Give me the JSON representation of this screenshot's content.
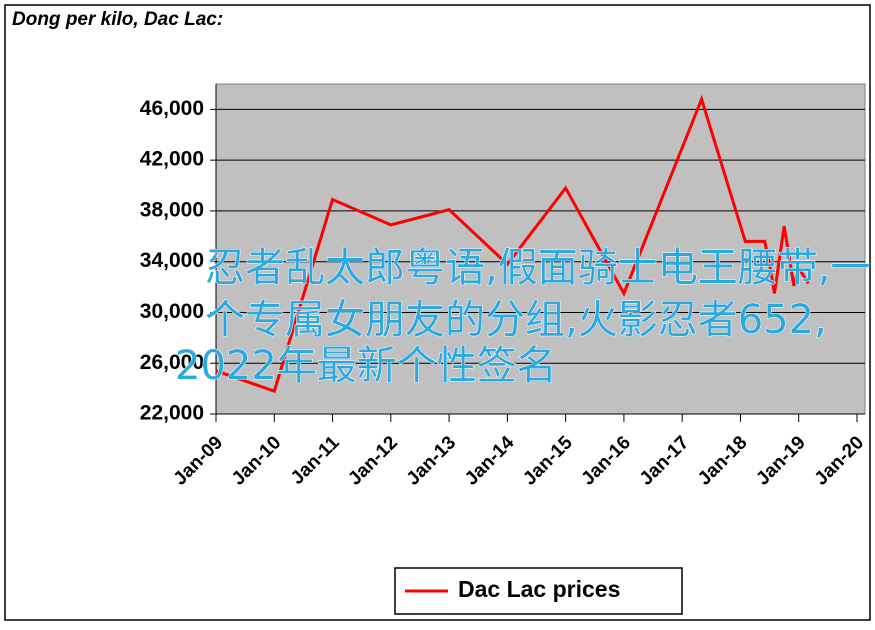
{
  "chart_data": {
    "type": "line",
    "title": "Dong per kilo, Dac Lac:",
    "x": [
      "2009-01",
      "2010-01",
      "2011-01",
      "2012-01",
      "2013-01",
      "2014-01",
      "2015-01",
      "2016-01",
      "2017-05",
      "2018-02",
      "2018-06",
      "2018-07",
      "2018-08",
      "2018-10",
      "2018-12",
      "2019-01",
      "2019-03"
    ],
    "series": [
      {
        "name": "Dac Lac prices",
        "color": "#ff0000",
        "values": [
          25400,
          23800,
          38900,
          36900,
          38100,
          33800,
          39800,
          31500,
          46800,
          35600,
          35600,
          33800,
          31500,
          36800,
          32100,
          33500,
          32300
        ]
      }
    ],
    "xlim": [
      "2009-01",
      "2020-01"
    ],
    "xticks": [
      {
        "value": "2009-01",
        "label": "Jan-09"
      },
      {
        "value": "2010-01",
        "label": "Jan-10"
      },
      {
        "value": "2011-01",
        "label": "Jan-11"
      },
      {
        "value": "2012-01",
        "label": "Jan-12"
      },
      {
        "value": "2013-01",
        "label": "Jan-13"
      },
      {
        "value": "2014-01",
        "label": "Jan-14"
      },
      {
        "value": "2015-01",
        "label": "Jan-15"
      },
      {
        "value": "2016-01",
        "label": "Jan-16"
      },
      {
        "value": "2017-01",
        "label": "Jan-17"
      },
      {
        "value": "2018-01",
        "label": "Jan-18"
      },
      {
        "value": "2019-01",
        "label": "Jan-19"
      },
      {
        "value": "2020-01",
        "label": "Jan-20"
      }
    ],
    "ylim": [
      22000,
      48000
    ],
    "yticks": [
      {
        "value": 22000,
        "label": "22,000"
      },
      {
        "value": 26000,
        "label": "26,000"
      },
      {
        "value": 30000,
        "label": "30,000"
      },
      {
        "value": 34000,
        "label": "34,000"
      },
      {
        "value": 38000,
        "label": "38,000"
      },
      {
        "value": 42000,
        "label": "42,000"
      },
      {
        "value": 46000,
        "label": "46,000"
      }
    ],
    "grid": true,
    "plot_background": "#c0c0c0",
    "legend": "bottom"
  },
  "overlay_text": [
    "忍者乱太郎粤语,假面骑士电王腰带,一",
    "个专属女朋友的分组,火影忍者652,",
    "2022年最新个性签名"
  ]
}
